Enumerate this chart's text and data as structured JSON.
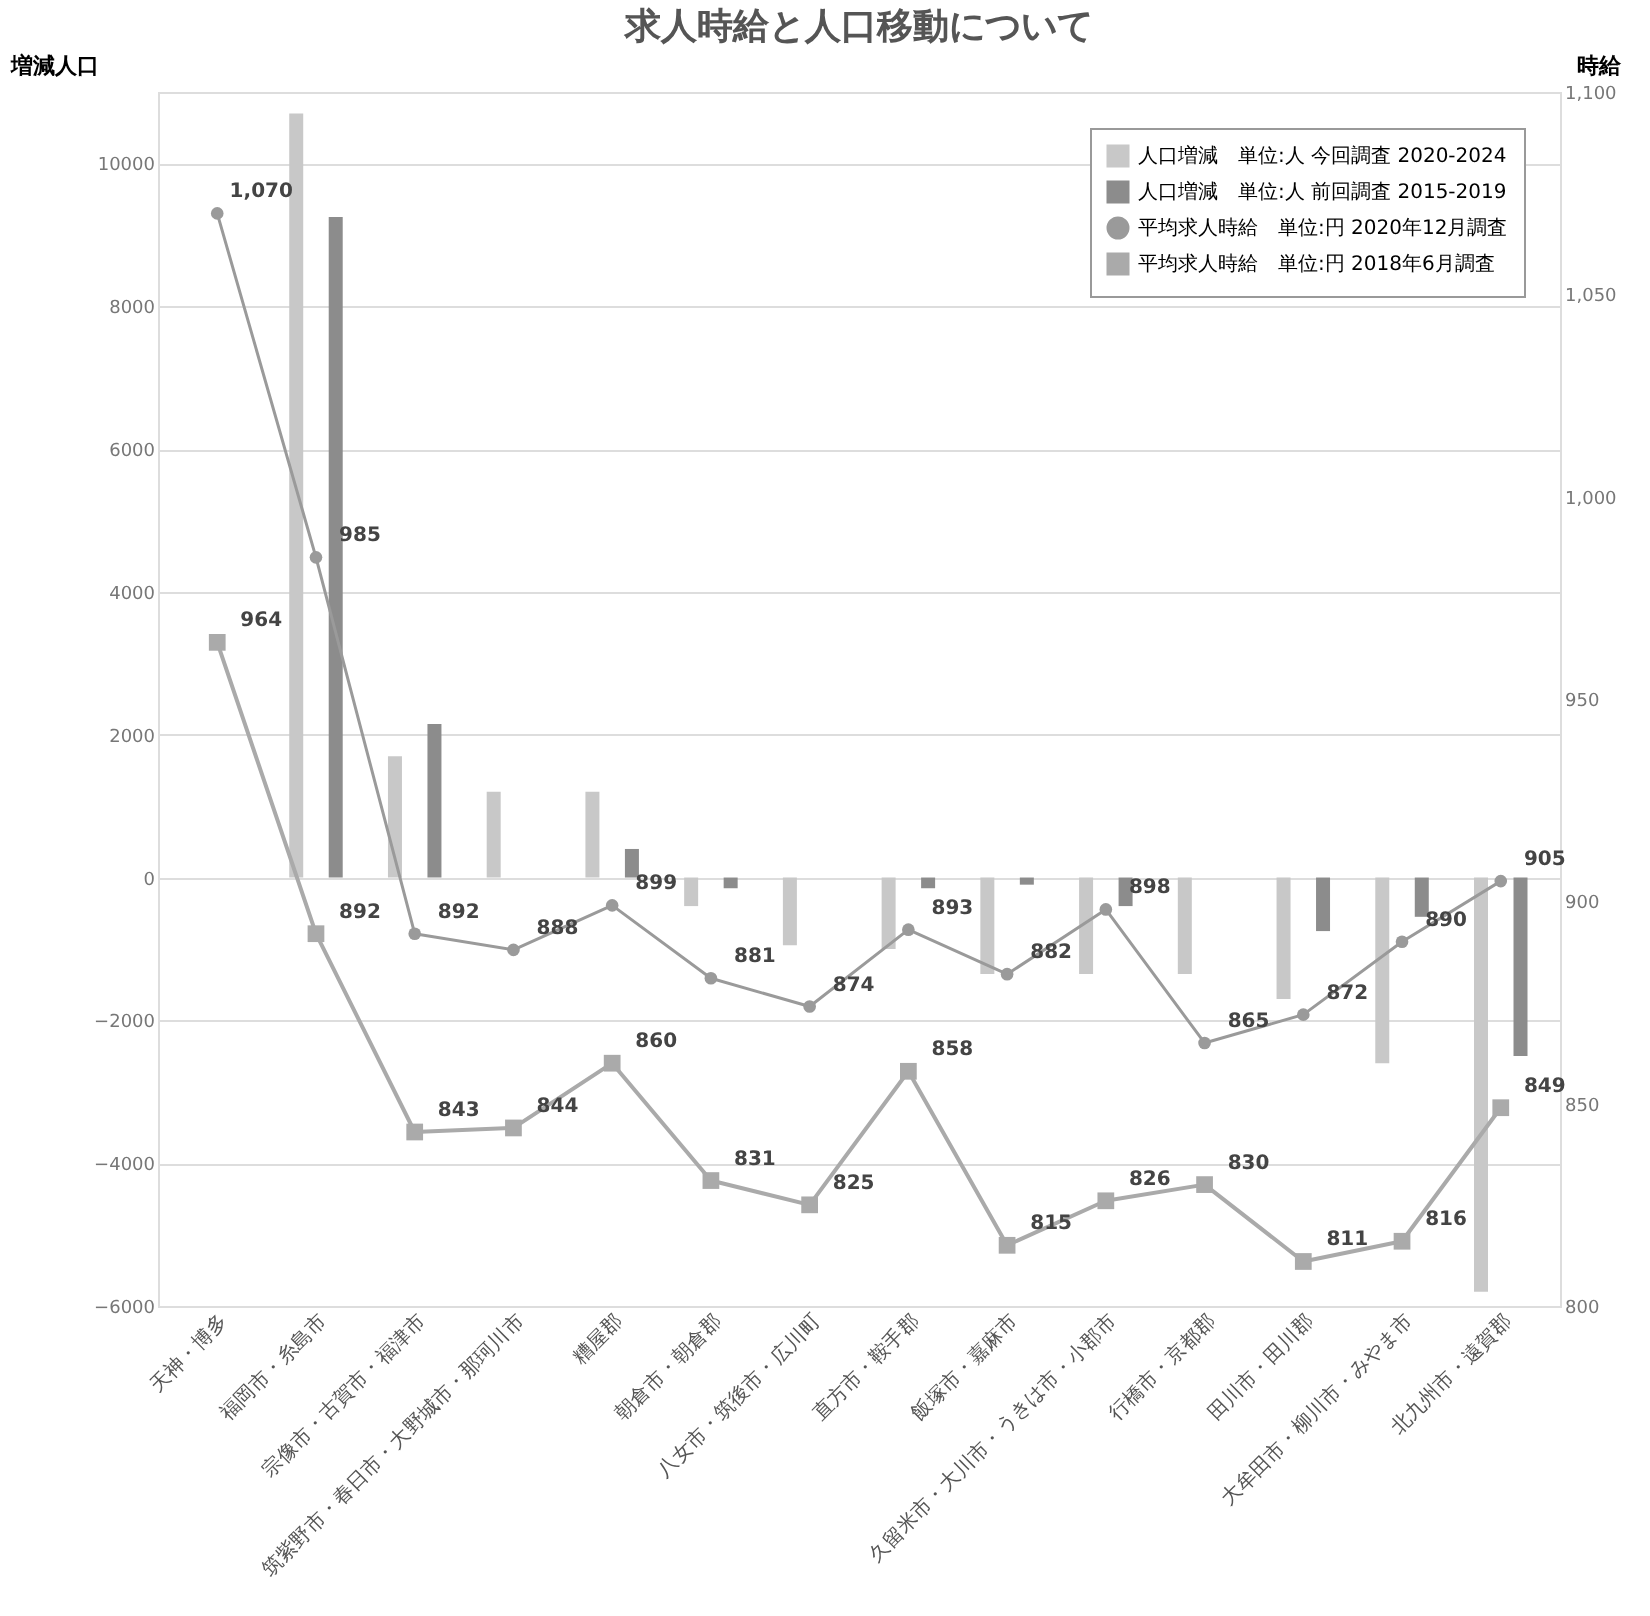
{
  "chart_data": {
    "type": "bar",
    "title": "求人時給と人口移動について",
    "ylabel": "増減人口",
    "y2label": "時給",
    "categories": [
      "天神・博多",
      "福岡市・糸島市",
      "宗像市・古賀市・福津市",
      "筑紫野市・春日市・大野城市・那珂川市",
      "糟屋郡",
      "朝倉市・朝倉郡",
      "八女市・筑後市・広川町",
      "直方市・鞍手郡",
      "飯塚市・嘉麻市",
      "久留米市・大川市・うきは市・小郡市",
      "行橋市・京都郡",
      "田川市・田川郡",
      "大牟田市・柳川市・みやま市",
      "北九州市・遠賀郡"
    ],
    "series": [
      {
        "name": "人口増減　単位:人 今回調査 2020-2024",
        "color": "#c8c8c8",
        "values": [
          null,
          10700,
          1700,
          1200,
          1200,
          -400,
          -950,
          -1000,
          -1350,
          -1350,
          -1350,
          -1700,
          -2600,
          -5800
        ]
      },
      {
        "name": "人口増減　単位:人 前回調査 2015-2019",
        "color": "#8c8c8c",
        "values": [
          null,
          9250,
          2150,
          null,
          400,
          -150,
          null,
          -150,
          -100,
          -400,
          null,
          -750,
          -550,
          -2500
        ]
      },
      {
        "name": "平均求人時給　単位:円 2020年12月調査",
        "type": "line",
        "axis": "y2",
        "color": "#9a9a9a",
        "marker": "circle",
        "values": [
          1070,
          985,
          892,
          888,
          899,
          881,
          874,
          893,
          882,
          898,
          865,
          872,
          890,
          905
        ],
        "value_labels": [
          "1,070",
          "985",
          "892",
          "888",
          "899",
          "881",
          "874",
          "893",
          "882",
          "898",
          "865",
          "872",
          "890",
          "905"
        ]
      },
      {
        "name": "平均求人時給　単位:円 2018年6月調査",
        "type": "line",
        "axis": "y2",
        "color": "#aaaaaa",
        "marker": "square",
        "values": [
          964,
          892,
          843,
          844,
          860,
          831,
          825,
          858,
          815,
          826,
          830,
          811,
          816,
          849
        ],
        "value_labels": [
          "964",
          "892",
          "843",
          "844",
          "860",
          "831",
          "825",
          "858",
          "815",
          "826",
          "830",
          "811",
          "816",
          "849"
        ]
      }
    ],
    "ylim": [
      -6000,
      11000
    ],
    "yticks": [
      -6000,
      -4000,
      -2000,
      0,
      2000,
      4000,
      6000,
      8000,
      10000
    ],
    "y2lim": [
      800,
      1100
    ],
    "y2ticks": [
      800,
      850,
      900,
      950,
      {
        "value": 1000,
        "label": "1,000"
      },
      {
        "value": 1050,
        "label": "1,050"
      },
      {
        "value": 1100,
        "label": "1,100"
      }
    ],
    "grid": "y",
    "legend": "top right"
  }
}
